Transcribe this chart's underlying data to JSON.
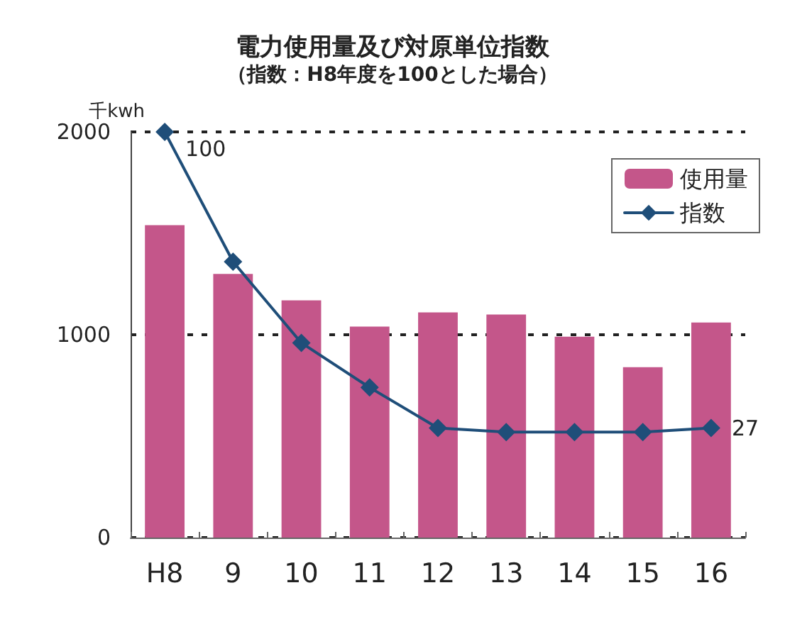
{
  "chart_data": {
    "type": "bar",
    "title": "電力使用量及び対原単位指数",
    "subtitle": "（指数：H8年度を100とした場合）",
    "ylabel": "千kwh",
    "categories": [
      "H8",
      "9",
      "10",
      "11",
      "12",
      "13",
      "14",
      "15",
      "16"
    ],
    "series": [
      {
        "name": "使用量",
        "color": "#c4568a",
        "values": [
          1540,
          1300,
          1170,
          1040,
          1110,
          1100,
          990,
          840,
          1060
        ]
      },
      {
        "name": "指数",
        "type": "line",
        "axis": "y2",
        "color": "#1f4e79",
        "values": [
          100,
          68,
          48,
          37,
          27,
          26,
          26,
          26,
          27
        ],
        "value_labels": [
          "100",
          null,
          null,
          null,
          null,
          null,
          null,
          null,
          "27"
        ]
      }
    ],
    "ylim": [
      0,
      2000
    ],
    "yticks": [
      0,
      1000,
      2000
    ],
    "y2lim": [
      0,
      100
    ],
    "grid": "y",
    "legend": "top right",
    "marker": "diamond"
  }
}
